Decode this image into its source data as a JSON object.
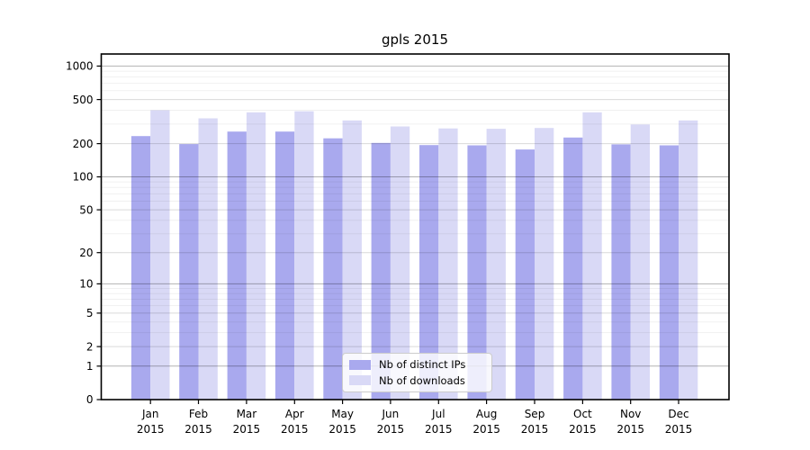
{
  "title": "gpls 2015",
  "legend": {
    "items": [
      {
        "label": "Nb of distinct IPs",
        "color": "#a9a9ee"
      },
      {
        "label": "Nb of downloads",
        "color": "#d9d9f6"
      }
    ]
  },
  "chart_data": {
    "type": "bar",
    "title": "gpls 2015",
    "categories": [
      "Jan 2015",
      "Feb 2015",
      "Mar 2015",
      "Apr 2015",
      "May 2015",
      "Jun 2015",
      "Jul 2015",
      "Aug 2015",
      "Sep 2015",
      "Oct 2015",
      "Nov 2015",
      "Dec 2015"
    ],
    "series": [
      {
        "name": "Nb of distinct IPs",
        "color": "#a9a9ee",
        "values": [
          234,
          198,
          257,
          257,
          223,
          203,
          194,
          193,
          177,
          227,
          197,
          193
        ]
      },
      {
        "name": "Nb of downloads",
        "color": "#d9d9f6",
        "values": [
          400,
          338,
          383,
          392,
          324,
          286,
          274,
          272,
          277,
          383,
          298,
          324
        ]
      }
    ],
    "xlabel": "",
    "ylabel": "",
    "yscale": "log10(value+1)",
    "yticks": [
      0,
      1,
      2,
      5,
      10,
      20,
      50,
      100,
      200,
      500,
      1000
    ],
    "ylim": [
      0,
      1300
    ],
    "grid": "both",
    "legend_position": "lower center"
  }
}
